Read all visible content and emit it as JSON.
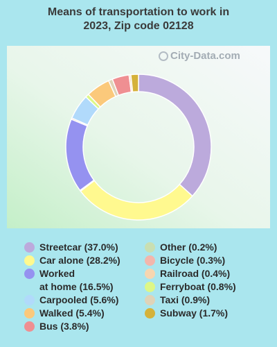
{
  "title": "Means of transportation to work in 2023, Zip code 02128",
  "watermark": "City-Data.com",
  "chart_data": {
    "type": "pie",
    "title": "Means of transportation to work in 2023, Zip code 02128",
    "categories": [
      "Streetcar",
      "Car alone",
      "Worked at home",
      "Carpooled",
      "Walked",
      "Bus",
      "Other",
      "Bicycle",
      "Railroad",
      "Ferryboat",
      "Taxi",
      "Subway"
    ],
    "values": [
      37.0,
      28.2,
      16.5,
      5.6,
      5.4,
      3.8,
      0.2,
      0.3,
      0.4,
      0.8,
      0.9,
      1.7
    ],
    "colors": [
      "#bcaadc",
      "#fff98f",
      "#9592f0",
      "#b1dafb",
      "#fbc97b",
      "#ef8f92",
      "#c9dfb2",
      "#f3b6ac",
      "#f7d6b0",
      "#ddf786",
      "#dfd3b8",
      "#d5b23a"
    ],
    "slice_order_clockwise_from_top": [
      0,
      1,
      6,
      2,
      7,
      3,
      9,
      4,
      10,
      5,
      8,
      11
    ]
  },
  "legend_col1": [
    {
      "lines": [
        "Streetcar (37.0%)"
      ],
      "color": "#bcaadc"
    },
    {
      "lines": [
        "Car alone (28.2%)"
      ],
      "color": "#fff98f"
    },
    {
      "lines": [
        "Worked",
        "at home (16.5%)"
      ],
      "color": "#9592f0"
    },
    {
      "lines": [
        "Carpooled (5.6%)"
      ],
      "color": "#b1dafb"
    },
    {
      "lines": [
        "Walked (5.4%)"
      ],
      "color": "#fbc97b"
    },
    {
      "lines": [
        "Bus (3.8%)"
      ],
      "color": "#ef8f92"
    }
  ],
  "legend_col2": [
    {
      "lines": [
        "Other (0.2%)"
      ],
      "color": "#c9dfb2"
    },
    {
      "lines": [
        "Bicycle (0.3%)"
      ],
      "color": "#f3b6ac"
    },
    {
      "lines": [
        "Railroad (0.4%)"
      ],
      "color": "#f7d6b0"
    },
    {
      "lines": [
        "Ferryboat (0.8%)"
      ],
      "color": "#ddf786"
    },
    {
      "lines": [
        "Taxi (0.9%)"
      ],
      "color": "#dfd3b8"
    },
    {
      "lines": [
        "Subway (1.7%)"
      ],
      "color": "#d5b23a"
    }
  ]
}
